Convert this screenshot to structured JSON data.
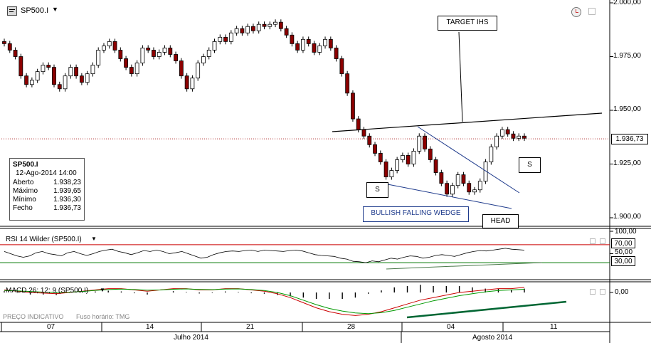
{
  "symbol": "SP500.I",
  "header": {
    "title": "SP500.I",
    "dropdown_icon": "chevron-down-icon",
    "app_icon": "chart-window-icon"
  },
  "info_box": {
    "title": "SP500.I",
    "datetime": "12-Ago-2014 14:00",
    "rows": [
      {
        "label": "Aberto",
        "value": "1.938,23"
      },
      {
        "label": "Máximo",
        "value": "1.939,65"
      },
      {
        "label": "Mínimo",
        "value": "1.936,30"
      },
      {
        "label": "Fecho",
        "value": "1.936,73"
      }
    ]
  },
  "annotations": {
    "target": "TARGET IHS",
    "wedge": "BULLISH FALLING WEDGE",
    "head": "HEAD",
    "shoulder_left": "S",
    "shoulder_right": "S"
  },
  "price_axis": {
    "ticks": [
      "2.000,00",
      "1.975,00",
      "1.950,00",
      "1.925,00",
      "1.900,00"
    ],
    "tick_values": [
      2000,
      1975,
      1950,
      1925,
      1900
    ],
    "current_label": "1.936,73",
    "current_value": 1936.73
  },
  "rsi": {
    "title": "RSI 14 Wilder (SP500.I)",
    "ticks": [
      "100,00",
      "50,00"
    ],
    "tick_values": [
      100,
      50
    ],
    "upper_label": "70,00",
    "lower_label": "30,00",
    "upper": 70,
    "lower": 30
  },
  "macd": {
    "title": "MACD 26; 12; 9 (SP500.I)",
    "tick": "0,00"
  },
  "footer": {
    "note": "PREÇO INDICATIVO",
    "timezone": "Fuso horário: TMG"
  },
  "time_axis": {
    "days": [
      "07",
      "14",
      "21",
      "28",
      "04",
      "11"
    ],
    "months": [
      "Julho 2014",
      "Agosto 2014"
    ]
  },
  "colors": {
    "up_candle": "#ffffff",
    "down_candle": "#8b0000",
    "rsi_upper": "#cc0000",
    "rsi_lower": "#007700",
    "macd_line": "#cc0000",
    "signal_line": "#009900",
    "trendline": "#000000",
    "wedge_lines": "#1f3b8c",
    "macd_trend": "#006633"
  },
  "chart_data": {
    "type": "candlestick",
    "title": "SP500.I",
    "interval": "hourly",
    "x_range": [
      "03-Jul-2014",
      "12-Ago-2014"
    ],
    "ylim": [
      1898,
      2001
    ],
    "series": [
      {
        "name": "SP500.I",
        "close": [
          1981,
          1978,
          1975,
          1966,
          1962,
          1964,
          1968,
          1971,
          1970,
          1962,
          1960,
          1966,
          1970,
          1966,
          1963,
          1967,
          1971,
          1978,
          1980,
          1982,
          1978,
          1974,
          1970,
          1967,
          1972,
          1979,
          1978,
          1975,
          1977,
          1979,
          1976,
          1973,
          1966,
          1960,
          1965,
          1972,
          1975,
          1978,
          1982,
          1984,
          1982,
          1986,
          1988,
          1986,
          1989,
          1987,
          1990,
          1989,
          1990,
          1991,
          1988,
          1985,
          1981,
          1978,
          1983,
          1981,
          1977,
          1980,
          1983,
          1979,
          1974,
          1967,
          1958,
          1946,
          1941,
          1938,
          1934,
          1930,
          1926,
          1919,
          1922,
          1927,
          1929,
          1925,
          1931,
          1938,
          1932,
          1927,
          1921,
          1916,
          1911,
          1915,
          1920,
          1916,
          1912,
          1913,
          1917,
          1926,
          1933,
          1938,
          1941,
          1939,
          1937,
          1938,
          1937
        ]
      },
      {
        "name": "RSI",
        "values": [
          55,
          50,
          45,
          42,
          45,
          52,
          55,
          50,
          48,
          45,
          52,
          55,
          50,
          46,
          50,
          55,
          58,
          60,
          55,
          52,
          48,
          52,
          57,
          55,
          58,
          55,
          50,
          52,
          55,
          50,
          45,
          40,
          42,
          48,
          52,
          55,
          56,
          55,
          57,
          58,
          55,
          58,
          57,
          56,
          55,
          57,
          58,
          56,
          52,
          48,
          46,
          45,
          44,
          40,
          38,
          33,
          32,
          30,
          34,
          32,
          36,
          40,
          38,
          42,
          45,
          44,
          40,
          42,
          46,
          48,
          46,
          44,
          48,
          52,
          55,
          57,
          56,
          58,
          60,
          62,
          60,
          59,
          58
        ]
      },
      {
        "name": "MACD",
        "values": [
          2,
          1,
          0,
          -0.5,
          -1,
          0,
          1,
          2,
          3,
          3,
          2,
          1,
          2,
          3,
          3,
          2,
          2,
          3,
          3,
          2,
          1,
          -1,
          -4,
          -8,
          -12,
          -15,
          -17,
          -18,
          -17,
          -15,
          -12,
          -9,
          -6,
          -4,
          -2,
          0,
          1,
          2,
          3,
          3,
          4
        ]
      },
      {
        "name": "Signal",
        "values": [
          1.5,
          1.2,
          0.8,
          0.3,
          0,
          0.2,
          0.8,
          1.6,
          2.3,
          2.6,
          2.3,
          1.8,
          2,
          2.5,
          2.8,
          2.4,
          2.2,
          2.6,
          2.8,
          2.3,
          1.5,
          0,
          -2.5,
          -6,
          -9.5,
          -12.5,
          -14.5,
          -16,
          -16.5,
          -15.8,
          -14,
          -11.5,
          -9,
          -6.5,
          -4.5,
          -2.5,
          -1,
          0.5,
          1.5,
          2,
          2.5
        ]
      }
    ]
  }
}
